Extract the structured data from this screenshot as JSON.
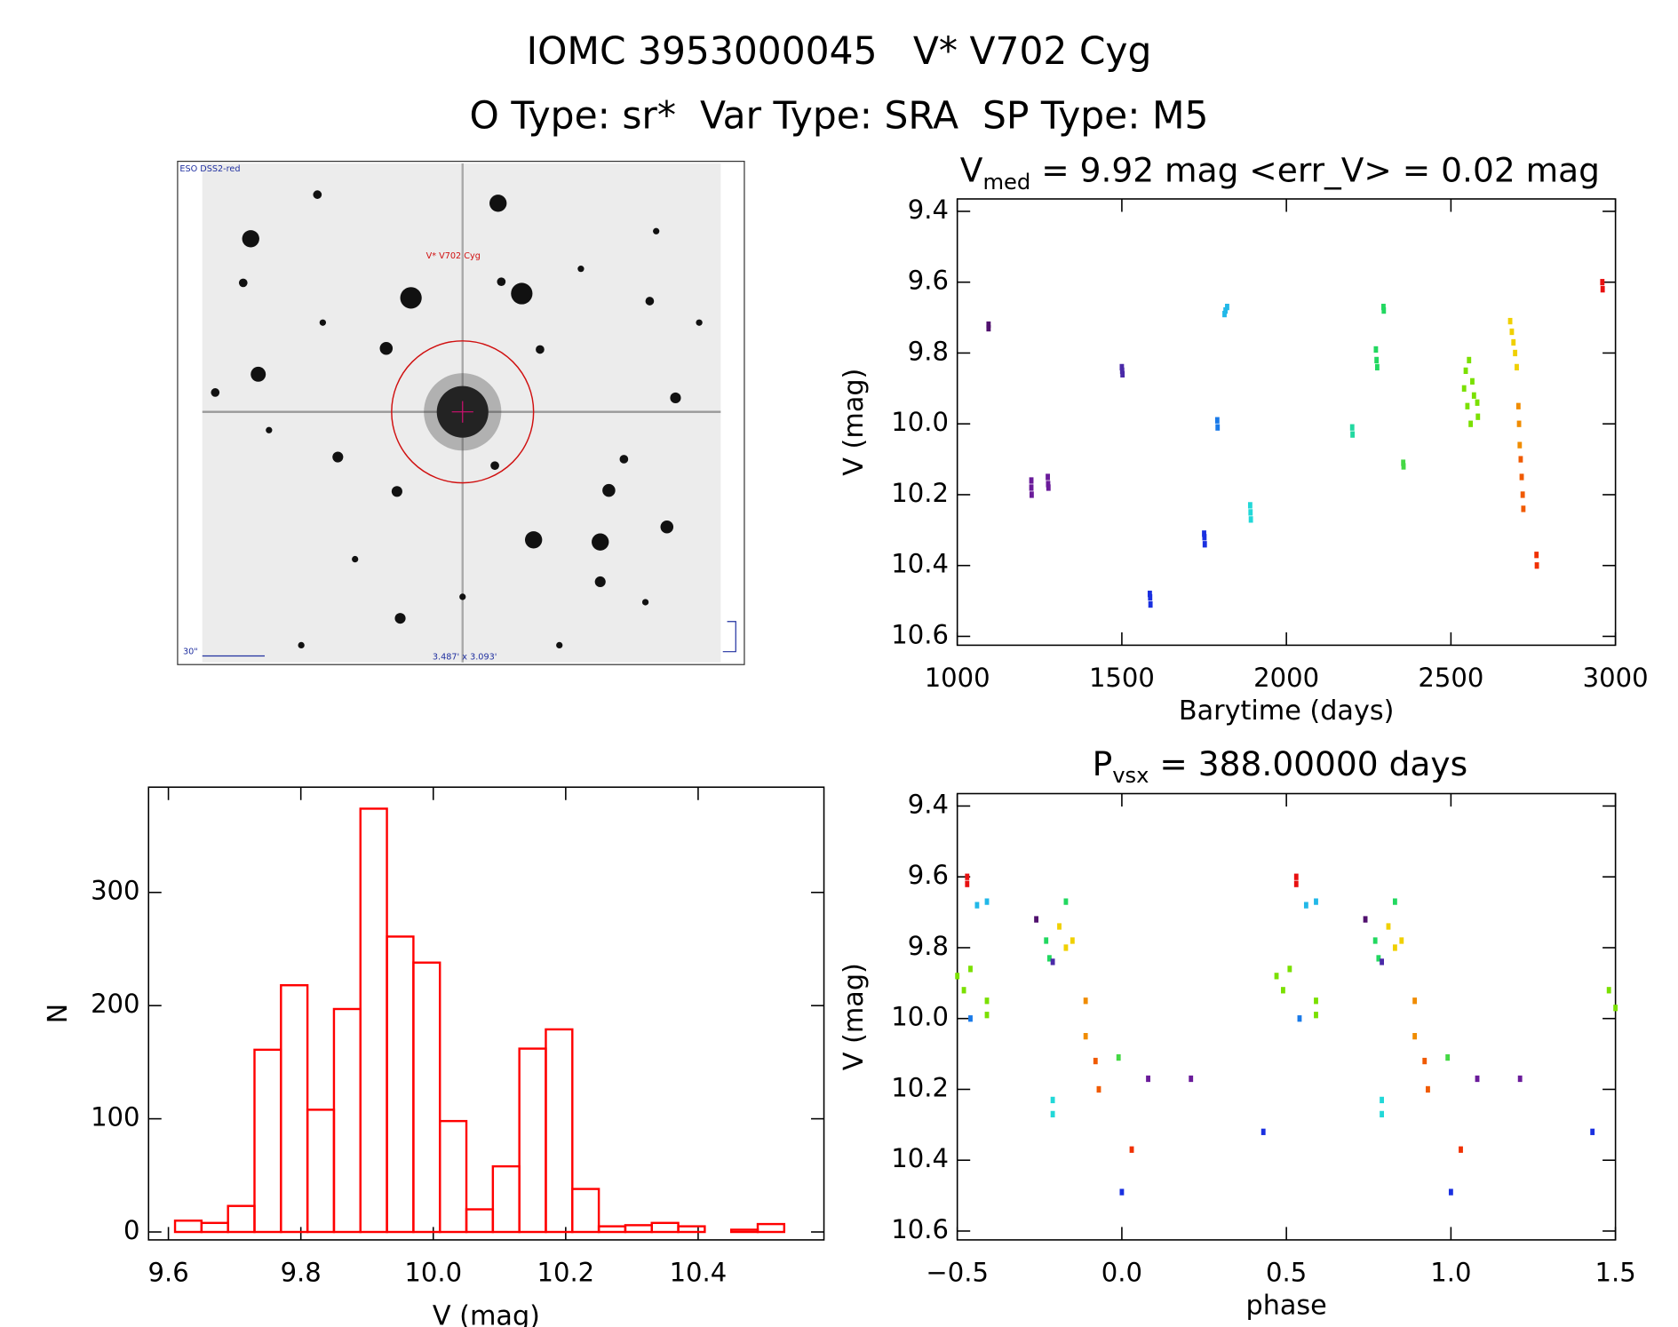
{
  "title": "IOMC 3953000045   V* V702 Cyg",
  "subtitle": "O Type: sr*  Var Type: SRA  SP Type: M5",
  "finder_image": {
    "survey": "ESO DSS2-red",
    "target": "V* V702 Cyg",
    "scale": "30\"",
    "field": "3.487' x 3.093'"
  },
  "chart_data": [
    {
      "type": "scatter",
      "title": {
        "main": "V",
        "subscript": "med",
        "rest": " = 9.92 mag <err_V> = 0.02 mag"
      },
      "x_label": "Barytime (days)",
      "y_label": "V (mag)",
      "xlim": [
        1000,
        3000
      ],
      "ylim": [
        10.625,
        9.365
      ],
      "xticks": [
        1000,
        1500,
        2000,
        2500,
        3000
      ],
      "yticks": [
        9.4,
        9.6,
        9.8,
        {
          "value": 10.0,
          "label": "10.0"
        },
        10.2,
        10.4,
        10.6
      ],
      "series": [
        {
          "color": "#50106e",
          "x": [
            1095,
            1095
          ],
          "values": [
            9.72,
            9.73
          ]
        },
        {
          "color": "#6a1b9a",
          "x": [
            1225,
            1225,
            1226,
            1275,
            1276,
            1277
          ],
          "values": [
            10.16,
            10.18,
            10.2,
            10.15,
            10.17,
            10.18
          ]
        },
        {
          "color": "#4a2aa8",
          "x": [
            1500,
            1501,
            1502
          ],
          "values": [
            9.84,
            9.85,
            9.86
          ]
        },
        {
          "color": "#1a30e0",
          "x": [
            1585,
            1586,
            1587,
            1750,
            1751,
            1752
          ],
          "values": [
            10.48,
            10.49,
            10.51,
            10.31,
            10.32,
            10.34
          ]
        },
        {
          "color": "#1a7ae8",
          "x": [
            1790,
            1791
          ],
          "values": [
            9.99,
            10.01
          ]
        },
        {
          "color": "#22b8e8",
          "x": [
            1812,
            1815,
            1820
          ],
          "values": [
            9.69,
            9.68,
            9.67
          ]
        },
        {
          "color": "#22d8d8",
          "x": [
            1890,
            1891,
            1892
          ],
          "values": [
            10.23,
            10.25,
            10.27
          ]
        },
        {
          "color": "#22d8a0",
          "x": [
            2200,
            2201
          ],
          "values": [
            10.01,
            10.03
          ]
        },
        {
          "color": "#22d860",
          "x": [
            2272,
            2274,
            2276,
            2295,
            2296
          ],
          "values": [
            9.79,
            9.82,
            9.84,
            9.67,
            9.68
          ]
        },
        {
          "color": "#44d844",
          "x": [
            2355,
            2356
          ],
          "values": [
            10.11,
            10.12
          ]
        },
        {
          "color": "#7ae000",
          "x": [
            2540,
            2545,
            2550,
            2555,
            2560,
            2565,
            2570,
            2580,
            2582
          ],
          "values": [
            9.9,
            9.85,
            9.95,
            9.82,
            10.0,
            9.88,
            9.92,
            9.94,
            9.98
          ]
        },
        {
          "color": "#f0d000",
          "x": [
            2680,
            2685,
            2690,
            2695,
            2700
          ],
          "values": [
            9.71,
            9.74,
            9.77,
            9.8,
            9.84
          ]
        },
        {
          "color": "#f08c00",
          "x": [
            2705,
            2707,
            2709
          ],
          "values": [
            9.95,
            10.0,
            10.06
          ]
        },
        {
          "color": "#f05a00",
          "x": [
            2712,
            2715,
            2718,
            2720
          ],
          "values": [
            10.1,
            10.15,
            10.2,
            10.24
          ]
        },
        {
          "color": "#f03000",
          "x": [
            2760,
            2761
          ],
          "values": [
            10.37,
            10.4
          ]
        },
        {
          "color": "#e81010",
          "x": [
            2960,
            2961
          ],
          "values": [
            9.6,
            9.62
          ]
        }
      ]
    },
    {
      "type": "scatter",
      "title": {
        "main": "P",
        "subscript": "vsx",
        "rest": " = 388.00000 days"
      },
      "x_label": "phase",
      "y_label": "V (mag)",
      "xlim": [
        -0.5,
        1.5
      ],
      "ylim": [
        10.625,
        9.365
      ],
      "xticks": [
        {
          "value": -0.5,
          "label": "−0.5"
        },
        {
          "value": 0.0,
          "label": "0.0"
        },
        0.5,
        {
          "value": 1.0,
          "label": "1.0"
        },
        1.5
      ],
      "yticks": [
        9.4,
        9.6,
        9.8,
        {
          "value": 10.0,
          "label": "10.0"
        },
        10.2,
        10.4,
        10.6
      ],
      "series": [
        {
          "color": "#e81010",
          "x": [
            -0.47,
            -0.47,
            0.53,
            0.53
          ],
          "values": [
            9.6,
            9.62,
            9.6,
            9.62
          ]
        },
        {
          "color": "#7ae000",
          "x": [
            -0.5,
            -0.48,
            -0.46,
            -0.41,
            -0.41,
            0.47,
            0.49,
            0.51,
            0.59,
            0.59,
            1.48,
            1.5
          ],
          "values": [
            9.88,
            9.92,
            9.86,
            9.95,
            9.99,
            9.88,
            9.92,
            9.86,
            9.95,
            9.99,
            9.92,
            9.97
          ]
        },
        {
          "color": "#1a7ae8",
          "x": [
            -0.46,
            0.54
          ],
          "values": [
            10.0,
            10.0
          ]
        },
        {
          "color": "#22b8e8",
          "x": [
            -0.44,
            -0.41,
            0.56,
            0.59
          ],
          "values": [
            9.68,
            9.67,
            9.68,
            9.67
          ]
        },
        {
          "color": "#50106e",
          "x": [
            -0.26,
            0.74
          ],
          "values": [
            9.72,
            9.72
          ]
        },
        {
          "color": "#22d860",
          "x": [
            -0.23,
            -0.22,
            -0.17,
            0.77,
            0.78,
            0.83
          ],
          "values": [
            9.78,
            9.83,
            9.67,
            9.78,
            9.83,
            9.67
          ]
        },
        {
          "color": "#4a2aa8",
          "x": [
            -0.21,
            0.79
          ],
          "values": [
            9.84,
            9.84
          ]
        },
        {
          "color": "#22d8d8",
          "x": [
            -0.21,
            -0.21,
            0.79,
            0.79
          ],
          "values": [
            10.23,
            10.27,
            10.23,
            10.27
          ]
        },
        {
          "color": "#f0d000",
          "x": [
            -0.19,
            -0.17,
            -0.15,
            0.81,
            0.83,
            0.85
          ],
          "values": [
            9.74,
            9.8,
            9.78,
            9.74,
            9.8,
            9.78
          ]
        },
        {
          "color": "#f08c00",
          "x": [
            -0.11,
            -0.11,
            0.89,
            0.89
          ],
          "values": [
            9.95,
            10.05,
            9.95,
            10.05
          ]
        },
        {
          "color": "#f05a00",
          "x": [
            -0.08,
            -0.07,
            0.92,
            0.93
          ],
          "values": [
            10.12,
            10.2,
            10.12,
            10.2
          ]
        },
        {
          "color": "#44d844",
          "x": [
            -0.01,
            0.99
          ],
          "values": [
            10.11,
            10.11
          ]
        },
        {
          "color": "#1a30e0",
          "x": [
            0.0,
            1.0,
            0.43,
            1.43
          ],
          "values": [
            10.49,
            10.49,
            10.32,
            10.32
          ]
        },
        {
          "color": "#f03000",
          "x": [
            0.03,
            1.03
          ],
          "values": [
            10.37,
            10.37
          ]
        },
        {
          "color": "#6a1b9a",
          "x": [
            0.08,
            0.21,
            1.08,
            1.21
          ],
          "values": [
            10.17,
            10.17,
            10.17,
            10.17
          ]
        }
      ]
    },
    {
      "type": "histogram",
      "x_label": "V (mag)",
      "y_label": "N",
      "color": "#ff0000",
      "xlim": [
        9.57,
        10.59
      ],
      "ylim": [
        -7,
        393
      ],
      "xticks": [
        9.6,
        9.8,
        {
          "value": 10.0,
          "label": "10.0"
        },
        10.2,
        10.4
      ],
      "yticks": [
        0,
        100,
        200,
        300
      ],
      "bins": [
        9.61,
        9.65,
        9.69,
        9.73,
        9.77,
        9.81,
        9.85,
        9.89,
        9.93,
        9.97,
        10.01,
        10.05,
        10.09,
        10.13,
        10.17,
        10.21,
        10.25,
        10.29,
        10.33,
        10.37,
        10.41,
        10.45,
        10.49,
        10.53
      ],
      "values": [
        10,
        8,
        23,
        161,
        218,
        108,
        197,
        374,
        261,
        238,
        98,
        20,
        58,
        162,
        179,
        38,
        5,
        6,
        8,
        5,
        0,
        2,
        7
      ]
    }
  ]
}
